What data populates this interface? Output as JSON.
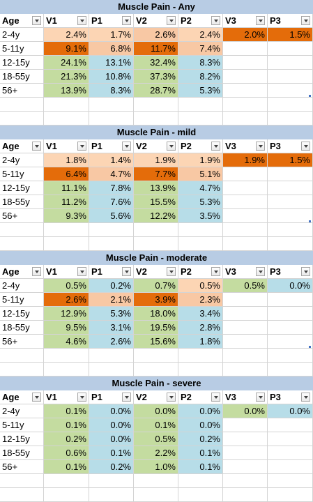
{
  "colors": {
    "title_band": "#b8cce4",
    "high_orange": "#e46c0a",
    "light_orange": "#f8c8a4",
    "pale_orange": "#fcd5b4",
    "green": "#c4dca0",
    "blue": "#b7dde8",
    "white": "#ffffff"
  },
  "tables": [
    {
      "title": "Muscle Pain - Any",
      "headers": [
        "Age",
        "V1",
        "P1",
        "V2",
        "P2",
        "V3",
        "P3"
      ],
      "rows": [
        {
          "cells": [
            "2-4y",
            "2.4%",
            "1.7%",
            "2.6%",
            "2.4%",
            "2.0%",
            "1.5%"
          ],
          "fills": [
            "white",
            "pale_orange",
            "pale_orange",
            "light_orange",
            "pale_orange",
            "high_orange",
            "high_orange"
          ]
        },
        {
          "cells": [
            "5-11y",
            "9.1%",
            "6.8%",
            "11.7%",
            "7.4%",
            "",
            ""
          ],
          "fills": [
            "white",
            "high_orange",
            "light_orange",
            "high_orange",
            "light_orange",
            "white",
            "white"
          ]
        },
        {
          "cells": [
            "12-15y",
            "24.1%",
            "13.1%",
            "32.4%",
            "8.3%",
            "",
            ""
          ],
          "fills": [
            "white",
            "green",
            "blue",
            "green",
            "blue",
            "white",
            "white"
          ]
        },
        {
          "cells": [
            "18-55y",
            "21.3%",
            "10.8%",
            "37.3%",
            "8.2%",
            "",
            ""
          ],
          "fills": [
            "white",
            "green",
            "blue",
            "green",
            "blue",
            "white",
            "white"
          ]
        },
        {
          "cells": [
            "56+",
            "13.9%",
            "8.3%",
            "28.7%",
            "5.3%",
            "",
            ""
          ],
          "fills": [
            "white",
            "green",
            "blue",
            "green",
            "blue",
            "white",
            "white"
          ]
        }
      ]
    },
    {
      "title": "Muscle Pain - mild",
      "headers": [
        "Age",
        "V1",
        "P1",
        "V2",
        "P2",
        "V3",
        "P3"
      ],
      "rows": [
        {
          "cells": [
            "2-4y",
            "1.8%",
            "1.4%",
            "1.9%",
            "1.9%",
            "1.9%",
            "1.5%"
          ],
          "fills": [
            "white",
            "pale_orange",
            "pale_orange",
            "pale_orange",
            "pale_orange",
            "high_orange",
            "high_orange"
          ]
        },
        {
          "cells": [
            "5-11y",
            "6.4%",
            "4.7%",
            "7.7%",
            "5.1%",
            "",
            ""
          ],
          "fills": [
            "white",
            "high_orange",
            "light_orange",
            "high_orange",
            "light_orange",
            "white",
            "white"
          ]
        },
        {
          "cells": [
            "12-15y",
            "11.1%",
            "7.8%",
            "13.9%",
            "4.7%",
            "",
            ""
          ],
          "fills": [
            "white",
            "green",
            "blue",
            "green",
            "blue",
            "white",
            "white"
          ]
        },
        {
          "cells": [
            "18-55y",
            "11.2%",
            "7.6%",
            "15.5%",
            "5.3%",
            "",
            ""
          ],
          "fills": [
            "white",
            "green",
            "blue",
            "green",
            "blue",
            "white",
            "white"
          ]
        },
        {
          "cells": [
            "56+",
            "9.3%",
            "5.6%",
            "12.2%",
            "3.5%",
            "",
            ""
          ],
          "fills": [
            "white",
            "green",
            "blue",
            "green",
            "blue",
            "white",
            "white"
          ]
        }
      ]
    },
    {
      "title": "Muscle Pain - moderate",
      "headers": [
        "Age",
        "V1",
        "P1",
        "V2",
        "P2",
        "V3",
        "P3"
      ],
      "rows": [
        {
          "cells": [
            "2-4y",
            "0.5%",
            "0.2%",
            "0.7%",
            "0.5%",
            "0.5%",
            "0.0%"
          ],
          "fills": [
            "white",
            "green",
            "blue",
            "green",
            "pale_orange",
            "green",
            "blue"
          ]
        },
        {
          "cells": [
            "5-11y",
            "2.6%",
            "2.1%",
            "3.9%",
            "2.3%",
            "",
            ""
          ],
          "fills": [
            "white",
            "high_orange",
            "light_orange",
            "high_orange",
            "light_orange",
            "white",
            "white"
          ]
        },
        {
          "cells": [
            "12-15y",
            "12.9%",
            "5.3%",
            "18.0%",
            "3.4%",
            "",
            ""
          ],
          "fills": [
            "white",
            "green",
            "blue",
            "green",
            "blue",
            "white",
            "white"
          ]
        },
        {
          "cells": [
            "18-55y",
            "9.5%",
            "3.1%",
            "19.5%",
            "2.8%",
            "",
            ""
          ],
          "fills": [
            "white",
            "green",
            "blue",
            "green",
            "blue",
            "white",
            "white"
          ]
        },
        {
          "cells": [
            "56+",
            "4.6%",
            "2.6%",
            "15.6%",
            "1.8%",
            "",
            ""
          ],
          "fills": [
            "white",
            "green",
            "blue",
            "green",
            "blue",
            "white",
            "white"
          ]
        }
      ]
    },
    {
      "title": "Muscle Pain - severe",
      "headers": [
        "Age",
        "V1",
        "P1",
        "V2",
        "P2",
        "V3",
        "P3"
      ],
      "rows": [
        {
          "cells": [
            "2-4y",
            "0.1%",
            "0.0%",
            "0.0%",
            "0.0%",
            "0.0%",
            "0.0%"
          ],
          "fills": [
            "white",
            "green",
            "blue",
            "green",
            "blue",
            "green",
            "blue"
          ]
        },
        {
          "cells": [
            "5-11y",
            "0.1%",
            "0.0%",
            "0.1%",
            "0.0%",
            "",
            ""
          ],
          "fills": [
            "white",
            "green",
            "blue",
            "green",
            "blue",
            "white",
            "white"
          ]
        },
        {
          "cells": [
            "12-15y",
            "0.2%",
            "0.0%",
            "0.5%",
            "0.2%",
            "",
            ""
          ],
          "fills": [
            "white",
            "green",
            "blue",
            "green",
            "blue",
            "white",
            "white"
          ]
        },
        {
          "cells": [
            "18-55y",
            "0.6%",
            "0.1%",
            "2.2%",
            "0.1%",
            "",
            ""
          ],
          "fills": [
            "white",
            "green",
            "blue",
            "green",
            "blue",
            "white",
            "white"
          ]
        },
        {
          "cells": [
            "56+",
            "0.1%",
            "0.2%",
            "1.0%",
            "0.1%",
            "",
            ""
          ],
          "fills": [
            "white",
            "green",
            "blue",
            "green",
            "blue",
            "white",
            "white"
          ]
        }
      ]
    }
  ]
}
